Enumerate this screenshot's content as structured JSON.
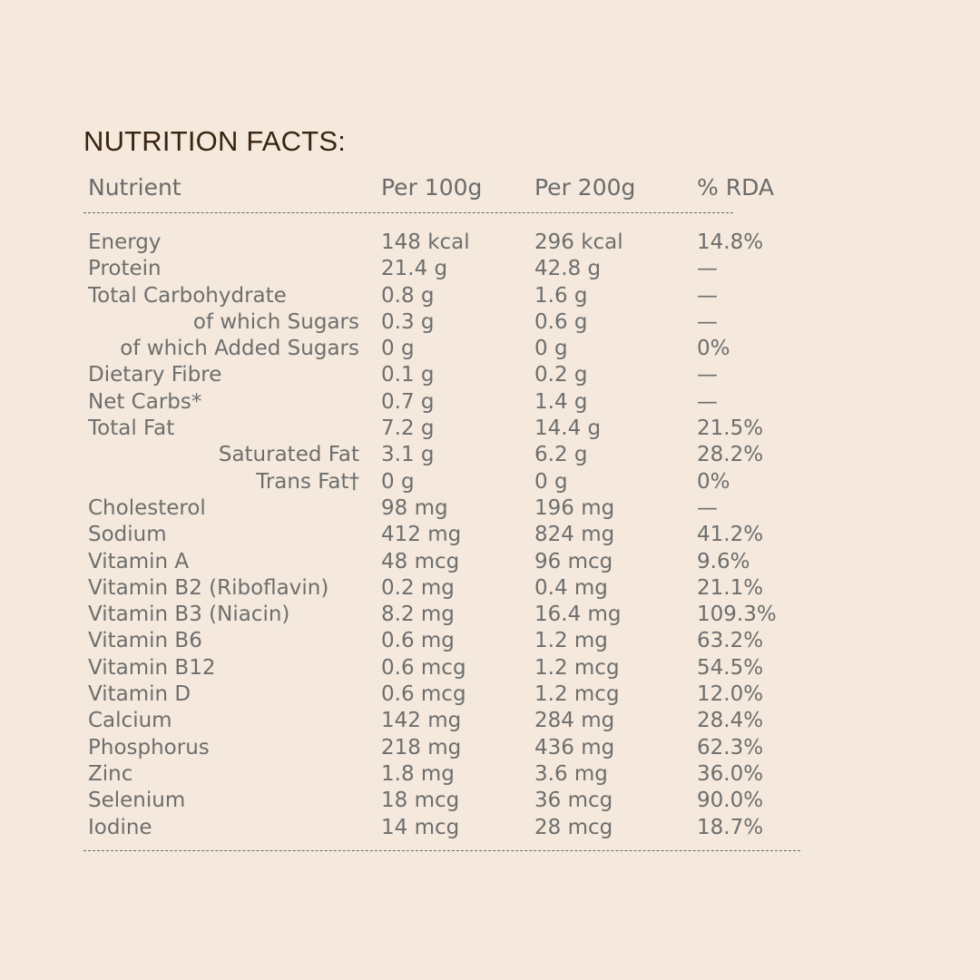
{
  "title": "NUTRITION FACTS:",
  "colors": {
    "background": "#f4e9dc",
    "title": "#3a2410",
    "text": "#6e6e6e",
    "rule": "#6a6a6a"
  },
  "table": {
    "headers": {
      "nutrient": "Nutrient",
      "per100": "Per 100g",
      "per200": "Per 200g",
      "rda": "% RDA"
    },
    "rows": [
      {
        "name": "Energy",
        "indent": false,
        "per100": "148 kcal",
        "per200": "296 kcal",
        "rda": "14.8%"
      },
      {
        "name": "Protein",
        "indent": false,
        "per100": "21.4 g",
        "per200": "42.8 g",
        "rda": "—"
      },
      {
        "name": "Total Carbohydrate",
        "indent": false,
        "per100": "0.8 g",
        "per200": "1.6 g",
        "rda": "—"
      },
      {
        "name": "of which Sugars",
        "indent": true,
        "per100": "0.3 g",
        "per200": "0.6 g",
        "rda": "—"
      },
      {
        "name": "of which Added Sugars",
        "indent": true,
        "per100": "0 g",
        "per200": "0 g",
        "rda": "0%"
      },
      {
        "name": "Dietary Fibre",
        "indent": false,
        "per100": "0.1 g",
        "per200": "0.2 g",
        "rda": "—"
      },
      {
        "name": "Net Carbs*",
        "indent": false,
        "per100": "0.7 g",
        "per200": "1.4 g",
        "rda": "—"
      },
      {
        "name": "Total Fat",
        "indent": false,
        "per100": "7.2 g",
        "per200": "14.4 g",
        "rda": "21.5%"
      },
      {
        "name": "Saturated Fat",
        "indent": true,
        "per100": "3.1 g",
        "per200": "6.2 g",
        "rda": "28.2%"
      },
      {
        "name": "Trans Fat†",
        "indent": true,
        "per100": "0 g",
        "per200": "0 g",
        "rda": "0%"
      },
      {
        "name": "Cholesterol",
        "indent": false,
        "per100": "98 mg",
        "per200": "196 mg",
        "rda": "—"
      },
      {
        "name": "Sodium",
        "indent": false,
        "per100": "412 mg",
        "per200": "824 mg",
        "rda": "41.2%"
      },
      {
        "name": "Vitamin A",
        "indent": false,
        "per100": "48 mcg",
        "per200": "96 mcg",
        "rda": "9.6%"
      },
      {
        "name": "Vitamin B2 (Riboflavin)",
        "indent": false,
        "per100": "0.2 mg",
        "per200": "0.4 mg",
        "rda": "21.1%"
      },
      {
        "name": "Vitamin B3 (Niacin)",
        "indent": false,
        "per100": "8.2 mg",
        "per200": "16.4 mg",
        "rda": "109.3%"
      },
      {
        "name": "Vitamin B6",
        "indent": false,
        "per100": "0.6 mg",
        "per200": "1.2 mg",
        "rda": "63.2%"
      },
      {
        "name": "Vitamin B12",
        "indent": false,
        "per100": "0.6 mcg",
        "per200": "1.2 mcg",
        "rda": "54.5%"
      },
      {
        "name": "Vitamin D",
        "indent": false,
        "per100": "0.6 mcg",
        "per200": "1.2 mcg",
        "rda": "12.0%"
      },
      {
        "name": "Calcium",
        "indent": false,
        "per100": "142 mg",
        "per200": "284 mg",
        "rda": "28.4%"
      },
      {
        "name": "Phosphorus",
        "indent": false,
        "per100": "218 mg",
        "per200": "436 mg",
        "rda": "62.3%"
      },
      {
        "name": "Zinc",
        "indent": false,
        "per100": "1.8 mg",
        "per200": "3.6 mg",
        "rda": "36.0%"
      },
      {
        "name": "Selenium",
        "indent": false,
        "per100": "18 mcg",
        "per200": "36 mcg",
        "rda": "90.0%"
      },
      {
        "name": "Iodine",
        "indent": false,
        "per100": "14 mcg",
        "per200": "28 mcg",
        "rda": "18.7%"
      }
    ]
  }
}
